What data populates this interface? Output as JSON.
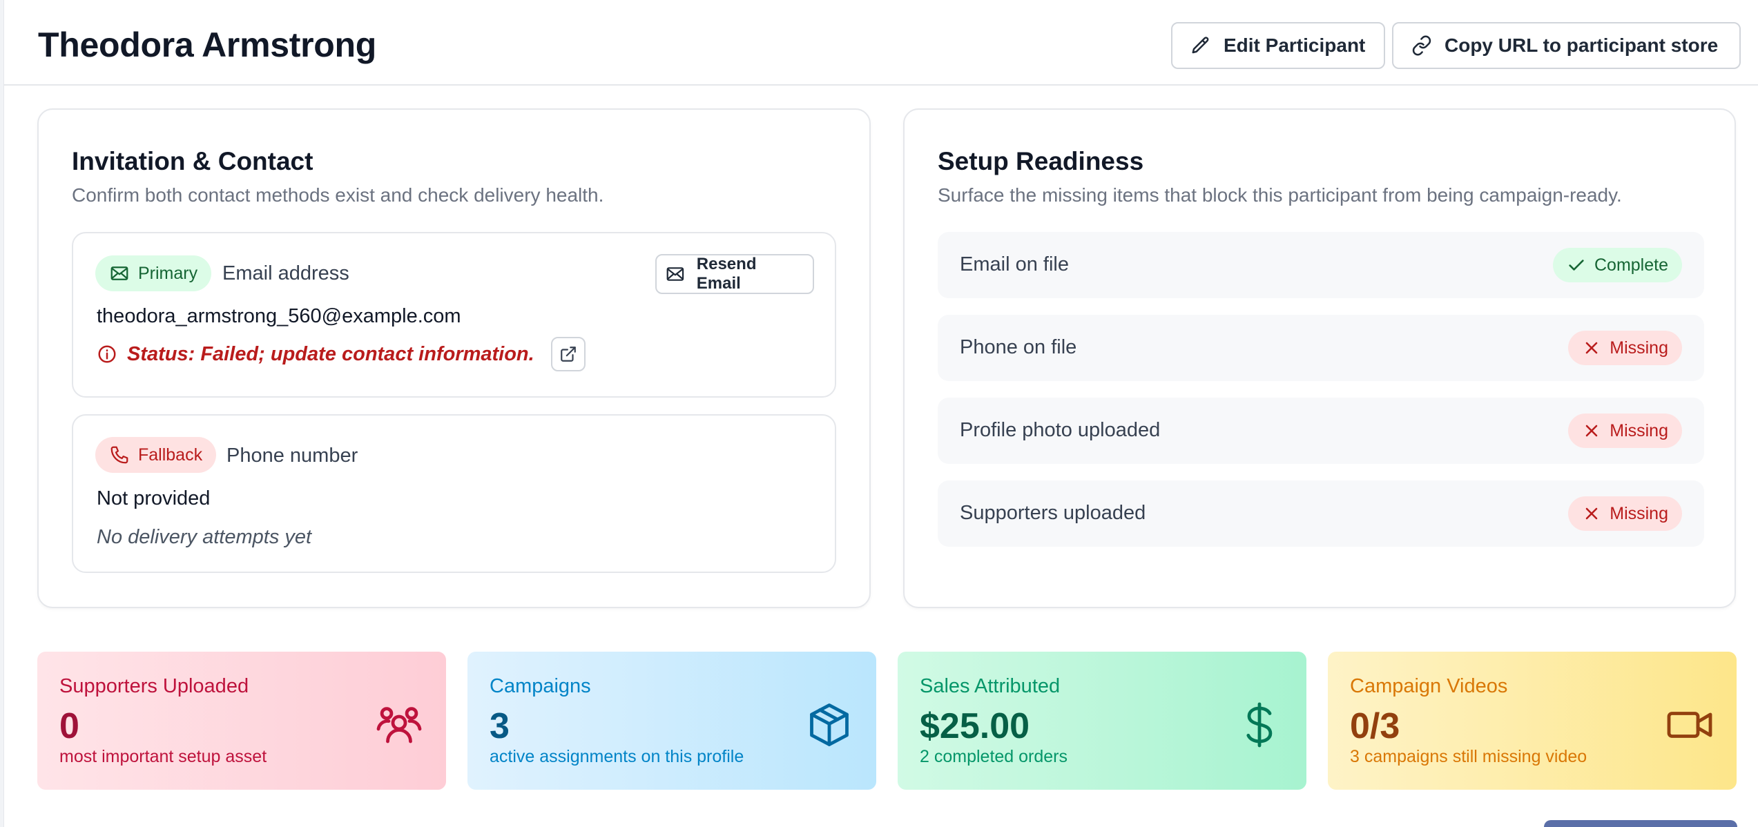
{
  "header": {
    "title": "Theodora Armstrong",
    "edit_label": "Edit Participant",
    "copy_label": "Copy URL to participant store"
  },
  "contact_card": {
    "title": "Invitation & Contact",
    "subtitle": "Confirm both contact methods exist and check delivery health.",
    "email": {
      "badge": "Primary",
      "label": "Email address",
      "resend_label": "Resend Email",
      "value": "theodora_armstrong_560@example.com",
      "status": "Status: Failed; update contact information."
    },
    "phone": {
      "badge": "Fallback",
      "label": "Phone number",
      "value": "Not provided",
      "note": "No delivery attempts yet"
    }
  },
  "readiness_card": {
    "title": "Setup Readiness",
    "subtitle": "Surface the missing items that block this participant from being campaign-ready.",
    "items": [
      {
        "label": "Email on file",
        "status": "Complete"
      },
      {
        "label": "Phone on file",
        "status": "Missing"
      },
      {
        "label": "Profile photo uploaded",
        "status": "Missing"
      },
      {
        "label": "Supporters uploaded",
        "status": "Missing"
      }
    ]
  },
  "stats": [
    {
      "label": "Supporters Uploaded",
      "value": "0",
      "foot": "most important setup asset",
      "icon": "users-icon"
    },
    {
      "label": "Campaigns",
      "value": "3",
      "foot": "active assignments on this profile",
      "icon": "box-icon"
    },
    {
      "label": "Sales Attributed",
      "value": "$25.00",
      "foot": "2 completed orders",
      "icon": "dollar-icon"
    },
    {
      "label": "Campaign Videos",
      "value": "0/3",
      "foot": "3 campaigns still missing video",
      "icon": "video-camera-icon"
    }
  ],
  "colors": {
    "success": "#166534",
    "danger": "#b91c1c",
    "border": "#e5e7eb"
  }
}
